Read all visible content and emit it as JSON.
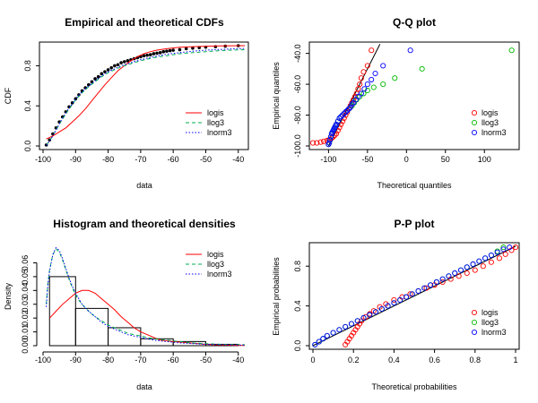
{
  "chart_data": [
    {
      "type": "line",
      "title": "Empirical and theoretical CDFs",
      "xlabel": "data",
      "ylabel": "CDF",
      "xlim": [
        -100,
        -38
      ],
      "ylim": [
        0,
        1
      ],
      "xticks": [
        -100,
        -90,
        -80,
        -70,
        -60,
        -50,
        -40
      ],
      "yticks": [
        0.0,
        0.4,
        0.8
      ],
      "legend_position": "bottom-right",
      "empirical": {
        "x": [
          -99,
          -98,
          -97,
          -96,
          -95,
          -94,
          -93,
          -92,
          -91,
          -90,
          -89,
          -88,
          -87,
          -86,
          -85,
          -84,
          -83,
          -82,
          -81,
          -80,
          -79,
          -78,
          -77,
          -76,
          -75,
          -74,
          -73,
          -72,
          -71,
          -70,
          -69,
          -68,
          -67,
          -66,
          -65,
          -64,
          -63,
          -62,
          -61,
          -60,
          -58,
          -56,
          -54,
          -52,
          -50,
          -47,
          -44,
          -40
        ],
        "y": [
          0.01,
          0.06,
          0.12,
          0.18,
          0.24,
          0.29,
          0.34,
          0.39,
          0.43,
          0.47,
          0.51,
          0.55,
          0.58,
          0.61,
          0.64,
          0.67,
          0.69,
          0.72,
          0.74,
          0.76,
          0.78,
          0.8,
          0.81,
          0.83,
          0.84,
          0.85,
          0.86,
          0.87,
          0.88,
          0.89,
          0.9,
          0.905,
          0.91,
          0.92,
          0.925,
          0.93,
          0.94,
          0.945,
          0.95,
          0.955,
          0.96,
          0.97,
          0.975,
          0.98,
          0.985,
          0.99,
          0.995,
          1.0
        ]
      },
      "series": [
        {
          "name": "logis",
          "color": "#ff0000",
          "dash": "solid",
          "x": [
            -99,
            -97,
            -95,
            -93,
            -91,
            -89,
            -87,
            -85,
            -83,
            -81,
            -79,
            -77,
            -75,
            -73,
            -71,
            -69,
            -67,
            -65,
            -62,
            -58,
            -54,
            -50,
            -46,
            -42,
            -38
          ],
          "y": [
            0.07,
            0.1,
            0.14,
            0.18,
            0.24,
            0.3,
            0.37,
            0.45,
            0.53,
            0.61,
            0.68,
            0.75,
            0.8,
            0.85,
            0.89,
            0.92,
            0.94,
            0.955,
            0.97,
            0.985,
            0.99,
            0.995,
            0.997,
            0.999,
            1.0
          ]
        },
        {
          "name": "llog3",
          "color": "#00b050",
          "dash": "dashed",
          "x": [
            -99,
            -98,
            -97,
            -96,
            -95,
            -94,
            -93,
            -92,
            -91,
            -90,
            -88,
            -86,
            -84,
            -82,
            -80,
            -78,
            -76,
            -74,
            -72,
            -70,
            -66,
            -62,
            -58,
            -54,
            -50,
            -46,
            -42,
            -38
          ],
          "y": [
            0.01,
            0.05,
            0.1,
            0.16,
            0.22,
            0.27,
            0.32,
            0.37,
            0.41,
            0.46,
            0.53,
            0.59,
            0.64,
            0.69,
            0.73,
            0.76,
            0.79,
            0.81,
            0.83,
            0.85,
            0.88,
            0.9,
            0.92,
            0.93,
            0.94,
            0.95,
            0.955,
            0.96
          ]
        },
        {
          "name": "lnorm3",
          "color": "#0000ff",
          "dash": "dotted",
          "x": [
            -99,
            -98,
            -97,
            -96,
            -95,
            -94,
            -93,
            -92,
            -91,
            -90,
            -88,
            -86,
            -84,
            -82,
            -80,
            -78,
            -76,
            -74,
            -72,
            -70,
            -66,
            -62,
            -58,
            -54,
            -50,
            -46,
            -42,
            -38
          ],
          "y": [
            0.005,
            0.05,
            0.1,
            0.16,
            0.22,
            0.28,
            0.33,
            0.38,
            0.42,
            0.47,
            0.54,
            0.6,
            0.65,
            0.7,
            0.74,
            0.77,
            0.8,
            0.82,
            0.84,
            0.86,
            0.89,
            0.915,
            0.93,
            0.945,
            0.955,
            0.962,
            0.968,
            0.972
          ]
        }
      ]
    },
    {
      "type": "scatter",
      "title": "Q-Q plot",
      "xlabel": "Theoretical quantiles",
      "ylabel": "Empirical quantiles",
      "xlim": [
        -120,
        140
      ],
      "ylim": [
        -100,
        -35
      ],
      "xticks": [
        -100,
        -50,
        0,
        50,
        100
      ],
      "yticks": [
        -100,
        -80,
        -60,
        -40
      ],
      "legend_position": "bottom-right",
      "reference_line": {
        "x": [
          -100,
          -34
        ],
        "y": [
          -100,
          -34
        ]
      },
      "series": [
        {
          "name": "logis",
          "color": "#ff0000",
          "x": [
            -120,
            -115,
            -110,
            -106,
            -102,
            -99,
            -96,
            -94,
            -92,
            -90,
            -88,
            -86,
            -84,
            -82,
            -80,
            -78,
            -76,
            -74,
            -72,
            -70,
            -68,
            -66,
            -64,
            -62,
            -60,
            -58,
            -55,
            -50,
            -45
          ],
          "y": [
            -98,
            -98,
            -97.5,
            -97,
            -96.5,
            -96,
            -95,
            -94,
            -93,
            -92,
            -90,
            -88,
            -86,
            -84,
            -82,
            -80,
            -78,
            -76,
            -74,
            -72,
            -70,
            -68,
            -66,
            -63,
            -60,
            -56,
            -52,
            -48,
            -38
          ]
        },
        {
          "name": "llog3",
          "color": "#00bb00",
          "x": [
            -100,
            -99,
            -98,
            -97,
            -96,
            -95,
            -94,
            -93,
            -92,
            -91,
            -90,
            -88,
            -86,
            -84,
            -82,
            -80,
            -78,
            -76,
            -74,
            -72,
            -70,
            -67,
            -64,
            -60,
            -55,
            -50,
            -42,
            -30,
            -15,
            20,
            135
          ],
          "y": [
            -99,
            -98,
            -96,
            -94,
            -92,
            -91,
            -90,
            -89,
            -88,
            -87,
            -86,
            -84,
            -82,
            -81,
            -80,
            -79,
            -78,
            -77,
            -76,
            -75,
            -74,
            -72,
            -70,
            -68,
            -66,
            -64,
            -62,
            -60,
            -56,
            -50,
            -38
          ]
        },
        {
          "name": "lnorm3",
          "color": "#0000ff",
          "x": [
            -100,
            -99,
            -98,
            -97,
            -96,
            -95,
            -94,
            -93,
            -92,
            -91,
            -90,
            -88,
            -86,
            -84,
            -82,
            -80,
            -78,
            -76,
            -74,
            -72,
            -70,
            -68,
            -65,
            -62,
            -58,
            -54,
            -50,
            -45,
            -40,
            -30,
            5
          ],
          "y": [
            -99,
            -98,
            -96,
            -94,
            -92,
            -91,
            -90,
            -89,
            -88,
            -87,
            -86,
            -84,
            -82,
            -81,
            -80,
            -79,
            -78,
            -77,
            -76,
            -75,
            -73,
            -72,
            -70,
            -68,
            -66,
            -63,
            -60,
            -57,
            -53,
            -48,
            -38
          ]
        }
      ]
    },
    {
      "type": "bar",
      "title": "Histogram and theoretical densities",
      "xlabel": "data",
      "ylabel": "Density",
      "xlim": [
        -100,
        -38
      ],
      "ylim": [
        0,
        0.072
      ],
      "xticks": [
        -100,
        -90,
        -80,
        -70,
        -60,
        -50,
        -40
      ],
      "yticks": [
        0.0,
        0.01,
        0.02,
        0.03,
        0.04,
        0.05,
        0.06
      ],
      "legend_position": "top-right",
      "bins": [
        {
          "start": -98,
          "end": -90,
          "density": 0.05
        },
        {
          "start": -90,
          "end": -80,
          "density": 0.027
        },
        {
          "start": -80,
          "end": -70,
          "density": 0.013
        },
        {
          "start": -70,
          "end": -60,
          "density": 0.005
        },
        {
          "start": -60,
          "end": -50,
          "density": 0.003
        },
        {
          "start": -50,
          "end": -40,
          "density": 0.001
        }
      ],
      "series": [
        {
          "name": "logis",
          "color": "#ff0000",
          "dash": "solid",
          "x": [
            -98,
            -96,
            -94,
            -92,
            -90,
            -88,
            -86,
            -84,
            -82,
            -80,
            -78,
            -76,
            -74,
            -72,
            -70,
            -67,
            -64,
            -60,
            -55,
            -50,
            -45,
            -40,
            -38
          ],
          "y": [
            0.02,
            0.025,
            0.03,
            0.034,
            0.038,
            0.04,
            0.04,
            0.038,
            0.034,
            0.03,
            0.026,
            0.021,
            0.017,
            0.013,
            0.01,
            0.007,
            0.004,
            0.003,
            0.002,
            0.001,
            0.0005,
            0.0002,
            0.0001
          ]
        },
        {
          "name": "llog3",
          "color": "#00b050",
          "dash": "dashed",
          "x": [
            -99,
            -98.5,
            -98,
            -97,
            -96,
            -95,
            -94,
            -93,
            -92,
            -91,
            -90,
            -89,
            -88,
            -86,
            -84,
            -82,
            -80,
            -78,
            -76,
            -74,
            -72,
            -70,
            -66,
            -62,
            -58,
            -54,
            -50,
            -45,
            -40,
            -38
          ],
          "y": [
            0.03,
            0.045,
            0.055,
            0.066,
            0.07,
            0.068,
            0.062,
            0.055,
            0.048,
            0.042,
            0.037,
            0.033,
            0.03,
            0.025,
            0.021,
            0.018,
            0.015,
            0.013,
            0.011,
            0.009,
            0.008,
            0.007,
            0.005,
            0.004,
            0.003,
            0.002,
            0.0015,
            0.001,
            0.0008,
            0.0007
          ]
        },
        {
          "name": "lnorm3",
          "color": "#0000ff",
          "dash": "dotted",
          "x": [
            -99,
            -98.5,
            -98,
            -97,
            -96,
            -95,
            -94,
            -93,
            -92,
            -91,
            -90,
            -89,
            -88,
            -86,
            -84,
            -82,
            -80,
            -78,
            -76,
            -74,
            -72,
            -70,
            -66,
            -62,
            -58,
            -54,
            -50,
            -45,
            -40,
            -38
          ],
          "y": [
            0.028,
            0.044,
            0.054,
            0.066,
            0.071,
            0.069,
            0.063,
            0.056,
            0.049,
            0.043,
            0.038,
            0.034,
            0.03,
            0.025,
            0.021,
            0.017,
            0.014,
            0.012,
            0.01,
            0.008,
            0.007,
            0.006,
            0.004,
            0.003,
            0.002,
            0.0015,
            0.001,
            0.0007,
            0.0005,
            0.0004
          ]
        }
      ]
    },
    {
      "type": "scatter",
      "title": "P-P plot",
      "xlabel": "Theoretical probabilities",
      "ylabel": "Empirical probabilities",
      "xlim": [
        0,
        1
      ],
      "ylim": [
        0,
        1
      ],
      "xticks": [
        0.0,
        0.2,
        0.4,
        0.6,
        0.8,
        1.0
      ],
      "yticks": [
        0.0,
        0.4,
        0.8
      ],
      "legend_position": "bottom-right",
      "reference_line": {
        "x": [
          0,
          1
        ],
        "y": [
          0,
          1
        ]
      },
      "series": [
        {
          "name": "logis",
          "color": "#ff0000",
          "x": [
            0.16,
            0.17,
            0.18,
            0.19,
            0.2,
            0.21,
            0.22,
            0.23,
            0.24,
            0.26,
            0.28,
            0.3,
            0.33,
            0.36,
            0.4,
            0.44,
            0.48,
            0.52,
            0.56,
            0.6,
            0.64,
            0.68,
            0.72,
            0.76,
            0.8,
            0.84,
            0.88,
            0.92,
            0.95,
            0.98,
            1.0
          ],
          "y": [
            0.01,
            0.04,
            0.07,
            0.1,
            0.13,
            0.16,
            0.19,
            0.22,
            0.25,
            0.29,
            0.32,
            0.35,
            0.39,
            0.42,
            0.46,
            0.49,
            0.52,
            0.55,
            0.58,
            0.61,
            0.64,
            0.67,
            0.7,
            0.73,
            0.76,
            0.8,
            0.84,
            0.88,
            0.92,
            0.96,
            0.99
          ]
        },
        {
          "name": "llog3",
          "color": "#00bb00",
          "x": [
            0.01,
            0.03,
            0.05,
            0.07,
            0.1,
            0.13,
            0.16,
            0.19,
            0.22,
            0.25,
            0.28,
            0.31,
            0.34,
            0.37,
            0.4,
            0.43,
            0.46,
            0.49,
            0.52,
            0.55,
            0.58,
            0.61,
            0.64,
            0.67,
            0.7,
            0.73,
            0.76,
            0.79,
            0.82,
            0.85,
            0.88,
            0.91,
            0.94
          ],
          "y": [
            0.01,
            0.04,
            0.07,
            0.1,
            0.13,
            0.16,
            0.19,
            0.22,
            0.25,
            0.28,
            0.31,
            0.34,
            0.37,
            0.4,
            0.43,
            0.46,
            0.49,
            0.52,
            0.55,
            0.58,
            0.61,
            0.64,
            0.67,
            0.7,
            0.73,
            0.76,
            0.79,
            0.82,
            0.85,
            0.88,
            0.91,
            0.95,
            0.99
          ]
        },
        {
          "name": "lnorm3",
          "color": "#0000ff",
          "x": [
            0.01,
            0.03,
            0.05,
            0.07,
            0.1,
            0.13,
            0.16,
            0.19,
            0.22,
            0.25,
            0.28,
            0.31,
            0.34,
            0.37,
            0.4,
            0.43,
            0.46,
            0.49,
            0.52,
            0.55,
            0.58,
            0.61,
            0.64,
            0.67,
            0.7,
            0.73,
            0.76,
            0.79,
            0.82,
            0.85,
            0.88,
            0.91,
            0.94,
            0.97
          ],
          "y": [
            0.01,
            0.04,
            0.07,
            0.1,
            0.13,
            0.16,
            0.19,
            0.22,
            0.25,
            0.28,
            0.31,
            0.34,
            0.37,
            0.4,
            0.43,
            0.46,
            0.49,
            0.52,
            0.55,
            0.58,
            0.61,
            0.64,
            0.67,
            0.7,
            0.73,
            0.76,
            0.79,
            0.82,
            0.85,
            0.88,
            0.91,
            0.94,
            0.97,
            0.99
          ]
        }
      ]
    }
  ]
}
